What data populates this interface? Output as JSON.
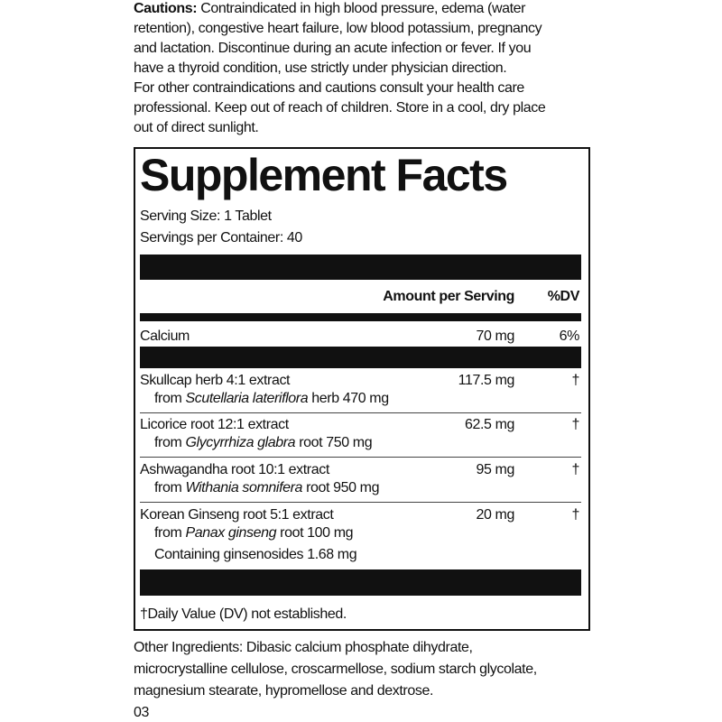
{
  "cautions": {
    "label": "Cautions:",
    "lines": [
      " Contraindicated in high blood pressure, edema (water",
      "retention), congestive heart failure, low blood potassium, pregnancy",
      "and lactation. Discontinue during an acute infection or fever. If you",
      "have a thyroid condition, use strictly under physician direction.",
      "For other contraindications and cautions consult your health care",
      "professional. Keep out of reach of children. Store in a cool, dry place",
      "out of direct sunlight."
    ]
  },
  "supplement_facts": {
    "title": "Supplement Facts",
    "serving_size": "Serving Size: 1 Tablet",
    "servings_per_container": "Servings per Container: 40",
    "header": {
      "amount": "Amount per Serving",
      "dv": "%DV"
    },
    "calcium": {
      "name": "Calcium",
      "amount": "70 mg",
      "dv": "6%"
    },
    "ingredients": [
      {
        "name": "Skullcap herb 4:1 extract",
        "source": {
          "prefix": "from ",
          "species": "Scutellaria lateriflora",
          "suffix": " herb 470 mg"
        },
        "amount": "117.5 mg",
        "dv": "†"
      },
      {
        "name": "Licorice root 12:1 extract",
        "source": {
          "prefix": "from ",
          "species": "Glycyrrhiza glabra",
          "suffix": " root 750 mg"
        },
        "amount": "62.5 mg",
        "dv": "†"
      },
      {
        "name": "Ashwagandha root 10:1 extract",
        "source": {
          "prefix": "from ",
          "species": "Withania somnifera",
          "suffix": " root 950 mg"
        },
        "amount": "95 mg",
        "dv": "†"
      },
      {
        "name": "Korean Ginseng root 5:1 extract",
        "source": {
          "prefix": "from ",
          "species": "Panax ginseng",
          "suffix": " root 100 mg"
        },
        "containing": "Containing ginsenosides 1.68 mg",
        "amount": "20 mg",
        "dv": "†"
      }
    ],
    "footnote": "†Daily Value (DV) not established."
  },
  "other_ingredients": {
    "lines": [
      "Other Ingredients: Dibasic calcium phosphate dihydrate,",
      "microcrystalline cellulose, croscarmellose, sodium starch glycolate,",
      "magnesium stearate, hypromellose and dextrose."
    ]
  },
  "page_number": "03"
}
